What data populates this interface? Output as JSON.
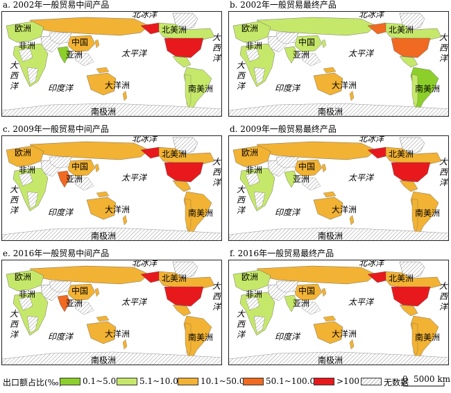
{
  "colors": {
    "c1": "#8ccf2a",
    "c2": "#c6e86a",
    "c3": "#f2b233",
    "c4": "#f06a22",
    "c5": "#e8191c",
    "nodata": "hatch",
    "ocean": "#ffffff"
  },
  "panels": [
    {
      "id": "a",
      "title": "a. 2002年一般贸易中间产品",
      "na": "c5",
      "ru": "c3",
      "ca": "c2",
      "cn": "c3",
      "au": "c3",
      "br": "c2",
      "ind": "c1",
      "eu": "c2",
      "af": "c2"
    },
    {
      "id": "b",
      "title": "b. 2002年一般贸易最终产品",
      "na": "c4",
      "ru": "c2",
      "ca": "c2",
      "cn": "c2",
      "au": "c3",
      "br": "c1",
      "ind": "c2",
      "eu": "c2",
      "af": "c2"
    },
    {
      "id": "c",
      "title": "c. 2009年一般贸易中间产品",
      "na": "c5",
      "ru": "c3",
      "ca": "c3",
      "cn": "c3",
      "au": "c3",
      "br": "c3",
      "ind": "c4",
      "eu": "c3",
      "af": "c2"
    },
    {
      "id": "d",
      "title": "d. 2009年一般贸易最终产品",
      "na": "c5",
      "ru": "c3",
      "ca": "c3",
      "cn": "c3",
      "au": "c3",
      "br": "c3",
      "ind": "c2",
      "eu": "c3",
      "af": "c2"
    },
    {
      "id": "e",
      "title": "e. 2016年一般贸易中间产品",
      "na": "c5",
      "ru": "c3",
      "ca": "c3",
      "cn": "c3",
      "au": "c3",
      "br": "c3",
      "ind": "c4",
      "eu": "c2",
      "af": "c2"
    },
    {
      "id": "f",
      "title": "f. 2016年一般贸易最终产品",
      "na": "c5",
      "ru": "c3",
      "ca": "c3",
      "cn": "c3",
      "au": "c3",
      "br": "c3",
      "ind": "c2",
      "eu": "c2",
      "af": "c2"
    }
  ],
  "map_labels": {
    "arctic": "北冰洋",
    "europe": "欧洲",
    "north_america": "北美洲",
    "atlantic_right": "大西洋",
    "africa": "非洲",
    "china": "中国",
    "asia": "亚洲",
    "pacific": "太平洋",
    "atlantic_left": "大西洋",
    "indian": "印度洋",
    "oceania": "大洋洲",
    "south_america": "南美洲",
    "antarctica": "南极洲"
  },
  "legend": {
    "title": "出口额占比(‰)",
    "items": [
      {
        "label": "0.1~5.0",
        "color": "c1"
      },
      {
        "label": "5.1~10.0",
        "color": "c2"
      },
      {
        "label": "10.1~50.0",
        "color": "c3"
      },
      {
        "label": "50.1~100.0",
        "color": "c4"
      },
      {
        "label": ">100",
        "color": "c5"
      },
      {
        "label": "无数据",
        "color": "nodata"
      }
    ],
    "scale_zero": "0",
    "scale_label": "5000 km"
  }
}
